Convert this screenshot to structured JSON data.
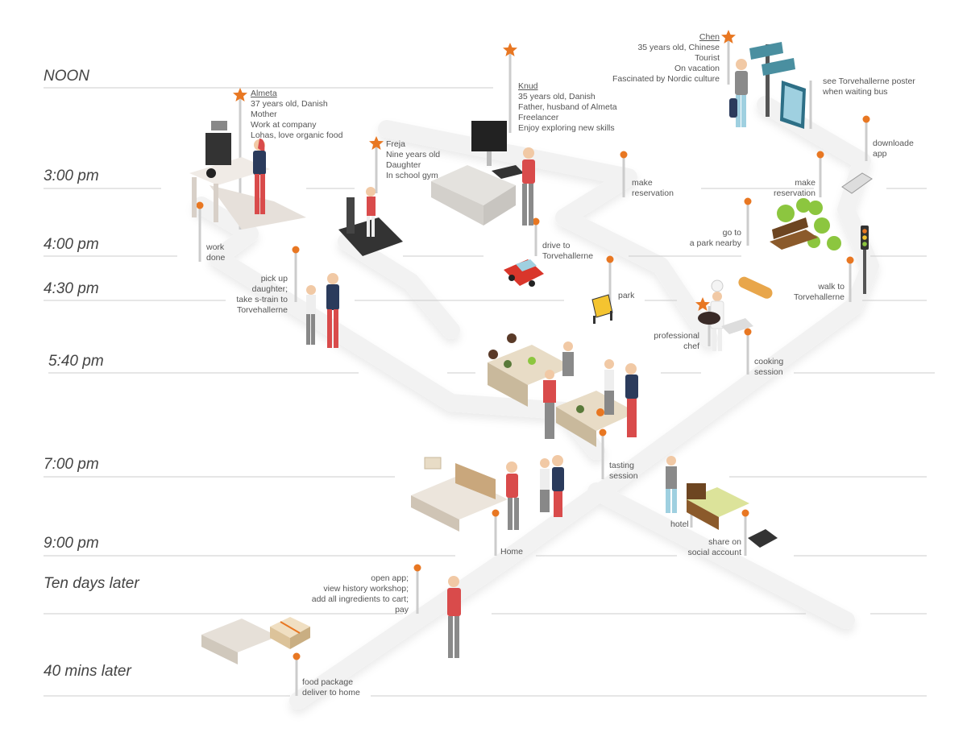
{
  "times": [
    "NOON",
    "3:00 pm",
    "4:00 pm",
    "4:30 pm",
    "5:40 pm",
    "7:00 pm",
    "9:00 pm",
    "Ten days later",
    "40 mins later"
  ],
  "personas": {
    "almeta": {
      "name": "Almeta",
      "lines": [
        "37 years old, Danish",
        "Mother",
        "Work at company",
        "Lohas, love organic food"
      ]
    },
    "freja": {
      "name": "Freja",
      "lines": [
        "Nine years old",
        "Daughter",
        "In school gym"
      ]
    },
    "knud": {
      "name": "Knud",
      "lines": [
        "35 years old, Danish",
        "Father, husband of Almeta",
        "Freelancer",
        "Enjoy exploring new skills"
      ]
    },
    "chen": {
      "name": "Chen",
      "lines": [
        "35 years old, Chinese",
        "Tourist",
        "On vacation",
        "Fascinated by Nordic culture"
      ]
    }
  },
  "steps": {
    "see_poster": [
      "see Torvehallerne poster",
      "when waiting bus"
    ],
    "download_app": [
      "downloade",
      "app"
    ],
    "knud_reservation": [
      "make",
      "reservation"
    ],
    "chen_reservation": [
      "make",
      "reservation"
    ],
    "work_done": [
      "work",
      "done"
    ],
    "pick_up": [
      "pick up",
      "daughter;",
      "take s-train to",
      "Torvehallerne"
    ],
    "drive": [
      "drive to",
      "Torvehallerne"
    ],
    "go_park": [
      "go to",
      "a park nearby"
    ],
    "walk": [
      "walk to",
      "Torvehallerne"
    ],
    "park": [
      "park"
    ],
    "chef": [
      "professional",
      "chef"
    ],
    "cooking": [
      "cooking",
      "session"
    ],
    "tasting": [
      "tasting",
      "session"
    ],
    "hotel": [
      "hotel"
    ],
    "share": [
      "share on",
      "social account"
    ],
    "home": [
      "Home"
    ],
    "open_app": [
      "open app;",
      "view history workshop;",
      "add all ingredients to cart;",
      "pay"
    ],
    "food_package": [
      "food package",
      "deliver to home"
    ]
  },
  "colors": {
    "accent": "#e87722",
    "path": "#f2f2f2",
    "line": "#cccccc",
    "text": "#555555"
  }
}
